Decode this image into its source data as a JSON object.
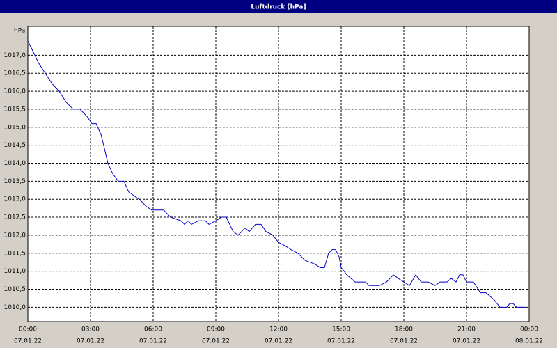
{
  "chart_data": {
    "type": "line",
    "title": "Luftdruck [hPa]",
    "y_label": "hPa",
    "x": [
      0,
      0.17,
      0.5,
      0.83,
      1.17,
      1.5,
      1.83,
      2.17,
      2.5,
      2.83,
      3.07,
      3.27,
      3.5,
      3.67,
      3.83,
      4.07,
      4.33,
      4.6,
      4.83,
      5.07,
      5.33,
      5.67,
      5.93,
      6.5,
      6.83,
      7.33,
      7.5,
      7.67,
      7.83,
      8.17,
      8.5,
      8.67,
      9,
      9.27,
      9.5,
      9.83,
      10.07,
      10.4,
      10.6,
      10.9,
      11.17,
      11.4,
      11.73,
      12,
      12.33,
      12.6,
      12.93,
      13.27,
      13.73,
      14,
      14.2,
      14.4,
      14.57,
      14.73,
      14.9,
      15,
      15.27,
      15.67,
      16.17,
      16.33,
      16.83,
      17.17,
      17.5,
      17.73,
      18,
      18.27,
      18.57,
      18.83,
      19.17,
      19.5,
      19.73,
      20.07,
      20.27,
      20.5,
      20.67,
      20.83,
      21,
      21.33,
      21.67,
      21.93,
      22.33,
      22.6,
      22.93,
      23.07,
      23.23,
      23.4,
      23.87
    ],
    "series": [
      {
        "name": "Luftdruck",
        "color": "#0000c8",
        "values": [
          1017.4,
          1017.2,
          1016.8,
          1016.5,
          1016.2,
          1016.0,
          1015.7,
          1015.5,
          1015.5,
          1015.3,
          1015.1,
          1015.1,
          1014.8,
          1014.4,
          1014.0,
          1013.7,
          1013.5,
          1013.5,
          1013.2,
          1013.1,
          1013.0,
          1012.8,
          1012.7,
          1012.7,
          1012.5,
          1012.4,
          1012.3,
          1012.4,
          1012.3,
          1012.4,
          1012.4,
          1012.3,
          1012.4,
          1012.5,
          1012.5,
          1012.1,
          1012.0,
          1012.2,
          1012.1,
          1012.3,
          1012.3,
          1012.1,
          1012.0,
          1011.8,
          1011.7,
          1011.6,
          1011.5,
          1011.3,
          1011.2,
          1011.1,
          1011.1,
          1011.5,
          1011.6,
          1011.6,
          1011.4,
          1011.1,
          1010.9,
          1010.7,
          1010.7,
          1010.6,
          1010.6,
          1010.7,
          1010.9,
          1010.8,
          1010.7,
          1010.6,
          1010.9,
          1010.7,
          1010.7,
          1010.6,
          1010.7,
          1010.7,
          1010.8,
          1010.7,
          1010.9,
          1010.9,
          1010.7,
          1010.7,
          1010.4,
          1010.4,
          1010.2,
          1010.0,
          1010.0,
          1010.1,
          1010.1,
          1010.0,
          1010.0
        ]
      }
    ],
    "xlim": [
      0,
      24
    ],
    "xticks": [
      {
        "value": 0,
        "label": [
          "00:00",
          "07.01.22"
        ]
      },
      {
        "value": 3,
        "label": [
          "03:00",
          "07.01.22"
        ]
      },
      {
        "value": 6,
        "label": [
          "06:00",
          "07.01.22"
        ]
      },
      {
        "value": 9,
        "label": [
          "09:00",
          "07.01.22"
        ]
      },
      {
        "value": 12,
        "label": [
          "12:00",
          "07.01.22"
        ]
      },
      {
        "value": 15,
        "label": [
          "15:00",
          "07.01.22"
        ]
      },
      {
        "value": 18,
        "label": [
          "18:00",
          "07.01.22"
        ]
      },
      {
        "value": 21,
        "label": [
          "21:00",
          "07.01.22"
        ]
      },
      {
        "value": 24,
        "label": [
          "00:00",
          "08.01.22"
        ]
      }
    ],
    "ylim": [
      1009.6,
      1017.8
    ],
    "yticks": [
      {
        "value": 1010.0,
        "label": "1010,0"
      },
      {
        "value": 1010.5,
        "label": "1010,5"
      },
      {
        "value": 1011.0,
        "label": "1011,0"
      },
      {
        "value": 1011.5,
        "label": "1011,5"
      },
      {
        "value": 1012.0,
        "label": "1012,0"
      },
      {
        "value": 1012.5,
        "label": "1012,5"
      },
      {
        "value": 1013.0,
        "label": "1013,0"
      },
      {
        "value": 1013.5,
        "label": "1013,5"
      },
      {
        "value": 1014.0,
        "label": "1014,0"
      },
      {
        "value": 1014.5,
        "label": "1014,5"
      },
      {
        "value": 1015.0,
        "label": "1015,0"
      },
      {
        "value": 1015.5,
        "label": "1015,5"
      },
      {
        "value": 1016.0,
        "label": "1016,0"
      },
      {
        "value": 1016.5,
        "label": "1016,5"
      },
      {
        "value": 1017.0,
        "label": "1017,0"
      }
    ],
    "grid": true
  }
}
